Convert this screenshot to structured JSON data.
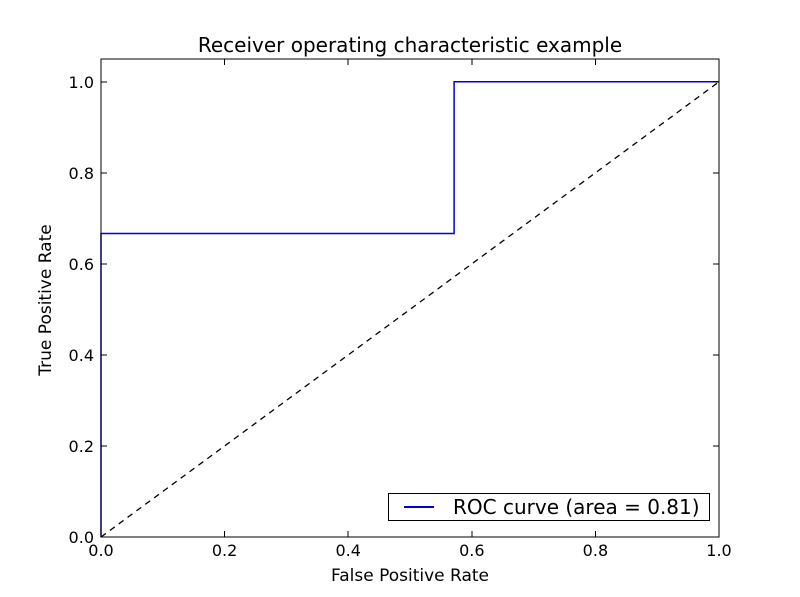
{
  "chart_data": {
    "type": "line",
    "title": "Receiver operating characteristic example",
    "xlabel": "False Positive Rate",
    "ylabel": "True Positive Rate",
    "xlim": [
      0.0,
      1.0
    ],
    "ylim": [
      0.0,
      1.05
    ],
    "xticks": [
      0.0,
      0.2,
      0.4,
      0.6,
      0.8,
      1.0
    ],
    "xtick_labels": [
      "0.0",
      "0.2",
      "0.4",
      "0.6",
      "0.8",
      "1.0"
    ],
    "yticks": [
      0.0,
      0.2,
      0.4,
      0.6,
      0.8,
      1.0
    ],
    "ytick_labels": [
      "0.0",
      "0.2",
      "0.4",
      "0.6",
      "0.8",
      "1.0"
    ],
    "grid": false,
    "frame_color": "#000000",
    "legend": {
      "position": "lower right",
      "entries": [
        {
          "label": "ROC curve (area = 0.81)",
          "color": "#0000dd",
          "style": "solid"
        }
      ]
    },
    "series": [
      {
        "name": "roc-curve",
        "color": "#0000dd",
        "style": "solid",
        "width": 1.5,
        "points": [
          [
            0.0,
            0.0
          ],
          [
            0.0,
            0.6667
          ],
          [
            0.5714,
            0.6667
          ],
          [
            0.5714,
            1.0
          ],
          [
            1.0,
            1.0
          ]
        ]
      },
      {
        "name": "chance-diagonal",
        "color": "#000000",
        "style": "dashed",
        "width": 1.3,
        "points": [
          [
            0.0,
            0.0
          ],
          [
            1.0,
            1.0
          ]
        ]
      }
    ],
    "roc_auc": 0.81
  }
}
